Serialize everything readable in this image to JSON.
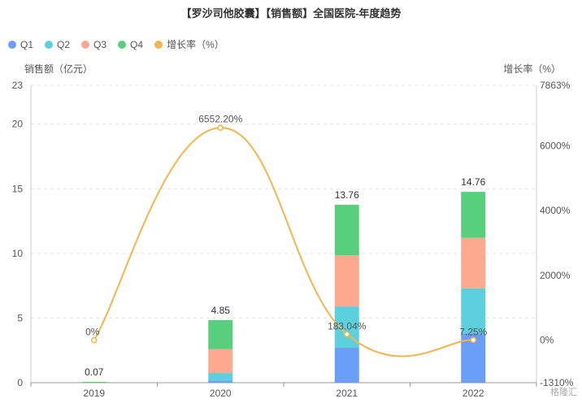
{
  "chart_data": {
    "type": "bar",
    "title": "【罗沙司他胶囊】【销售额】全国医院-年度趋势",
    "categories": [
      "2019",
      "2020",
      "2021",
      "2022"
    ],
    "series": [
      {
        "name": "Q1",
        "color": "#6a9ef7",
        "values": [
          0,
          0.15,
          2.7,
          3.8
        ]
      },
      {
        "name": "Q2",
        "color": "#5dd0de",
        "values": [
          0,
          0.6,
          3.2,
          3.5
        ]
      },
      {
        "name": "Q3",
        "color": "#fca98f",
        "values": [
          0,
          1.85,
          3.95,
          3.9
        ]
      },
      {
        "name": "Q4",
        "color": "#58cf7d",
        "values": [
          0.07,
          2.25,
          3.91,
          3.56
        ]
      }
    ],
    "totals": [
      "0.07",
      "4.85",
      "13.76",
      "14.76"
    ],
    "growth": {
      "name": "增长率（%）",
      "color": "#f5b54e",
      "values": [
        0,
        6552.2,
        183.04,
        7.25
      ],
      "labels": [
        "0%",
        "6552.20%",
        "183.04%",
        "7.25%"
      ]
    },
    "ylabel": "销售额（亿元）",
    "y2label": "增长率（%）",
    "ylim": [
      0,
      23
    ],
    "yticks": [
      "0",
      "5",
      "10",
      "15",
      "20",
      "23"
    ],
    "y2lim": [
      -1310,
      7863
    ],
    "y2ticks": [
      "-1310%",
      "0%",
      "2000%",
      "4000%",
      "6000%",
      "7863%"
    ],
    "grid": true,
    "legend": "top-left"
  },
  "watermark": "格隆汇"
}
